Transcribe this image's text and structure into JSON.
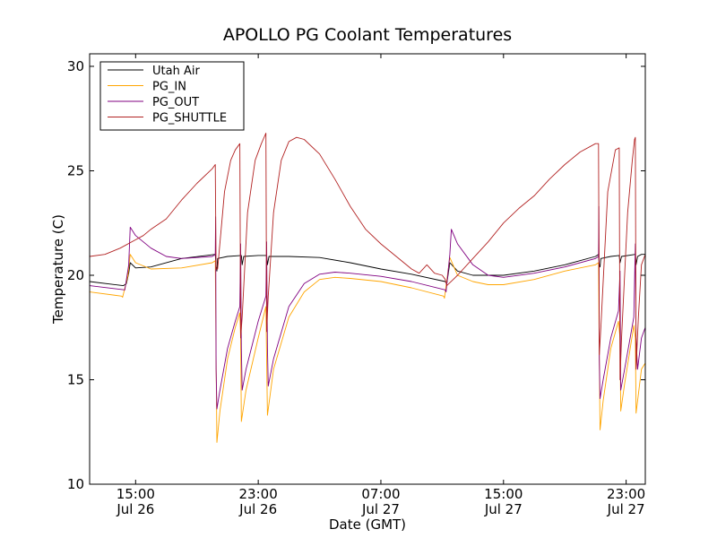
{
  "chart_data": {
    "type": "line",
    "title": "APOLLO PG Coolant Temperatures",
    "xlabel": "Date (GMT)",
    "ylabel": "Temperature (C)",
    "ylim": [
      10,
      30.6
    ],
    "xlim": [
      12.0,
      48.25
    ],
    "x_unit": "hours since Jul 26 00:00 GMT",
    "grid": false,
    "legend_position": "top-left",
    "yticks": [
      {
        "value": 10,
        "label": "10"
      },
      {
        "value": 15,
        "label": "15"
      },
      {
        "value": 20,
        "label": "20"
      },
      {
        "value": 25,
        "label": "25"
      },
      {
        "value": 30,
        "label": "30"
      }
    ],
    "xticks": [
      {
        "value": 15,
        "time": "15:00",
        "date": "Jul 26"
      },
      {
        "value": 23,
        "time": "23:00",
        "date": "Jul 26"
      },
      {
        "value": 31,
        "time": "07:00",
        "date": "Jul 27"
      },
      {
        "value": 39,
        "time": "15:00",
        "date": "Jul 27"
      },
      {
        "value": 47,
        "time": "23:00",
        "date": "Jul 27"
      }
    ],
    "series": [
      {
        "name": "Utah Air",
        "color": "#000000",
        "points": [
          [
            12.0,
            19.7
          ],
          [
            14.2,
            19.5
          ],
          [
            14.4,
            19.6
          ],
          [
            14.55,
            20.1
          ],
          [
            14.65,
            20.6
          ],
          [
            15.0,
            20.35
          ],
          [
            16.0,
            20.4
          ],
          [
            18.0,
            20.8
          ],
          [
            20.2,
            21.0
          ],
          [
            20.25,
            20.4
          ],
          [
            20.3,
            20.2
          ],
          [
            20.35,
            20.8
          ],
          [
            21.0,
            20.9
          ],
          [
            21.9,
            20.95
          ],
          [
            21.95,
            20.5
          ],
          [
            22.05,
            20.9
          ],
          [
            23.0,
            20.95
          ],
          [
            23.55,
            20.95
          ],
          [
            23.6,
            20.5
          ],
          [
            23.7,
            20.9
          ],
          [
            25.0,
            20.9
          ],
          [
            27.0,
            20.85
          ],
          [
            29.0,
            20.6
          ],
          [
            31.0,
            20.3
          ],
          [
            33.0,
            20.05
          ],
          [
            35.2,
            19.7
          ],
          [
            35.3,
            19.6
          ],
          [
            35.5,
            20.6
          ],
          [
            36.0,
            20.2
          ],
          [
            37.0,
            20.0
          ],
          [
            39.0,
            20.0
          ],
          [
            41.0,
            20.2
          ],
          [
            43.0,
            20.5
          ],
          [
            45.0,
            20.9
          ],
          [
            45.2,
            21.0
          ],
          [
            45.25,
            20.5
          ],
          [
            45.3,
            20.4
          ],
          [
            45.35,
            20.8
          ],
          [
            46.0,
            20.9
          ],
          [
            46.55,
            20.95
          ],
          [
            46.6,
            20.6
          ],
          [
            46.7,
            20.9
          ],
          [
            47.6,
            21.0
          ],
          [
            47.65,
            20.5
          ],
          [
            47.75,
            20.9
          ],
          [
            48.0,
            21.0
          ],
          [
            48.25,
            21.0
          ]
        ]
      },
      {
        "name": "PG_IN",
        "color": "#ffa500",
        "points": [
          [
            12.0,
            19.2
          ],
          [
            14.1,
            19.0
          ],
          [
            14.15,
            18.95
          ],
          [
            14.5,
            20.0
          ],
          [
            14.65,
            21.0
          ],
          [
            15.0,
            20.6
          ],
          [
            16.0,
            20.3
          ],
          [
            18.0,
            20.35
          ],
          [
            20.0,
            20.6
          ],
          [
            20.2,
            20.7
          ],
          [
            20.25,
            16.0
          ],
          [
            20.3,
            12.0
          ],
          [
            20.5,
            13.5
          ],
          [
            21.0,
            16.0
          ],
          [
            21.5,
            17.5
          ],
          [
            21.8,
            18.2
          ],
          [
            21.85,
            17.0
          ],
          [
            21.9,
            13.0
          ],
          [
            22.2,
            14.5
          ],
          [
            23.0,
            17.0
          ],
          [
            23.5,
            18.5
          ],
          [
            23.55,
            16.0
          ],
          [
            23.6,
            13.3
          ],
          [
            24.0,
            15.5
          ],
          [
            25.0,
            18.0
          ],
          [
            26.0,
            19.2
          ],
          [
            27.0,
            19.8
          ],
          [
            28.0,
            19.9
          ],
          [
            29.0,
            19.85
          ],
          [
            31.0,
            19.7
          ],
          [
            33.0,
            19.4
          ],
          [
            35.1,
            19.0
          ],
          [
            35.15,
            18.9
          ],
          [
            35.4,
            20.3
          ],
          [
            35.5,
            20.85
          ],
          [
            36.0,
            20.0
          ],
          [
            37.0,
            19.7
          ],
          [
            38.0,
            19.55
          ],
          [
            39.0,
            19.55
          ],
          [
            41.0,
            19.8
          ],
          [
            43.0,
            20.2
          ],
          [
            45.0,
            20.5
          ],
          [
            45.2,
            20.6
          ],
          [
            45.25,
            16.0
          ],
          [
            45.3,
            12.6
          ],
          [
            45.5,
            14.0
          ],
          [
            46.0,
            16.5
          ],
          [
            46.5,
            17.8
          ],
          [
            46.6,
            17.0
          ],
          [
            46.65,
            13.5
          ],
          [
            46.9,
            14.8
          ],
          [
            47.5,
            17.6
          ],
          [
            47.6,
            17.0
          ],
          [
            47.65,
            13.4
          ],
          [
            48.0,
            15.5
          ],
          [
            48.25,
            15.8
          ]
        ]
      },
      {
        "name": "PG_OUT",
        "color": "#800080",
        "points": [
          [
            12.0,
            19.5
          ],
          [
            14.3,
            19.3
          ],
          [
            14.55,
            20.5
          ],
          [
            14.65,
            22.3
          ],
          [
            15.0,
            21.9
          ],
          [
            16.0,
            21.3
          ],
          [
            17.0,
            20.9
          ],
          [
            18.0,
            20.8
          ],
          [
            20.0,
            20.9
          ],
          [
            20.2,
            21.0
          ],
          [
            20.22,
            22.8
          ],
          [
            20.25,
            15.5
          ],
          [
            20.3,
            13.6
          ],
          [
            20.5,
            14.5
          ],
          [
            21.0,
            16.5
          ],
          [
            21.5,
            17.8
          ],
          [
            21.8,
            18.5
          ],
          [
            21.85,
            21.5
          ],
          [
            21.9,
            16.5
          ],
          [
            21.95,
            14.5
          ],
          [
            22.2,
            15.5
          ],
          [
            23.0,
            17.8
          ],
          [
            23.5,
            19.0
          ],
          [
            23.55,
            21.6
          ],
          [
            23.6,
            16.5
          ],
          [
            23.65,
            14.7
          ],
          [
            24.0,
            16.0
          ],
          [
            25.0,
            18.5
          ],
          [
            26.0,
            19.6
          ],
          [
            27.0,
            20.05
          ],
          [
            28.0,
            20.15
          ],
          [
            29.0,
            20.1
          ],
          [
            31.0,
            19.95
          ],
          [
            33.0,
            19.7
          ],
          [
            35.2,
            19.3
          ],
          [
            35.25,
            19.2
          ],
          [
            35.5,
            21.0
          ],
          [
            35.6,
            22.2
          ],
          [
            36.0,
            21.5
          ],
          [
            37.0,
            20.5
          ],
          [
            38.0,
            20.0
          ],
          [
            39.0,
            19.9
          ],
          [
            41.0,
            20.1
          ],
          [
            43.0,
            20.4
          ],
          [
            45.0,
            20.8
          ],
          [
            45.2,
            20.9
          ],
          [
            45.22,
            23.3
          ],
          [
            45.25,
            16.0
          ],
          [
            45.3,
            14.1
          ],
          [
            45.5,
            15.0
          ],
          [
            46.0,
            17.0
          ],
          [
            46.5,
            18.3
          ],
          [
            46.6,
            20.2
          ],
          [
            46.65,
            14.5
          ],
          [
            46.9,
            15.5
          ],
          [
            47.5,
            18.0
          ],
          [
            47.6,
            21.5
          ],
          [
            47.65,
            17.0
          ],
          [
            47.75,
            15.5
          ],
          [
            48.0,
            17.0
          ],
          [
            48.25,
            17.5
          ]
        ]
      },
      {
        "name": "PG_SHUTTLE",
        "color": "#b22222",
        "points": [
          [
            12.0,
            20.9
          ],
          [
            13.0,
            21.0
          ],
          [
            14.0,
            21.3
          ],
          [
            15.0,
            21.7
          ],
          [
            15.5,
            21.9
          ],
          [
            16.0,
            22.2
          ],
          [
            17.0,
            22.7
          ],
          [
            18.0,
            23.6
          ],
          [
            19.0,
            24.4
          ],
          [
            20.0,
            25.1
          ],
          [
            20.2,
            25.3
          ],
          [
            20.25,
            20.3
          ],
          [
            20.35,
            20.3
          ],
          [
            20.8,
            24.0
          ],
          [
            21.2,
            25.5
          ],
          [
            21.5,
            26.0
          ],
          [
            21.8,
            26.3
          ],
          [
            21.85,
            17.0
          ],
          [
            21.95,
            18.0
          ],
          [
            22.3,
            23.0
          ],
          [
            22.8,
            25.5
          ],
          [
            23.2,
            26.3
          ],
          [
            23.5,
            26.8
          ],
          [
            23.55,
            17.3
          ],
          [
            23.65,
            19.0
          ],
          [
            24.0,
            23.0
          ],
          [
            24.5,
            25.5
          ],
          [
            25.0,
            26.4
          ],
          [
            25.5,
            26.6
          ],
          [
            26.0,
            26.5
          ],
          [
            27.0,
            25.8
          ],
          [
            28.0,
            24.6
          ],
          [
            29.0,
            23.3
          ],
          [
            30.0,
            22.2
          ],
          [
            31.0,
            21.5
          ],
          [
            32.0,
            20.9
          ],
          [
            33.0,
            20.3
          ],
          [
            33.5,
            20.1
          ],
          [
            34.0,
            20.5
          ],
          [
            34.5,
            20.1
          ],
          [
            35.0,
            20.0
          ],
          [
            35.2,
            19.8
          ],
          [
            35.3,
            19.5
          ],
          [
            36.0,
            20.0
          ],
          [
            37.0,
            20.8
          ],
          [
            38.0,
            21.6
          ],
          [
            39.0,
            22.5
          ],
          [
            40.0,
            23.2
          ],
          [
            41.0,
            23.8
          ],
          [
            42.0,
            24.6
          ],
          [
            43.0,
            25.3
          ],
          [
            44.0,
            25.9
          ],
          [
            45.0,
            26.3
          ],
          [
            45.2,
            26.3
          ],
          [
            45.25,
            16.2
          ],
          [
            45.35,
            17.5
          ],
          [
            45.8,
            24.0
          ],
          [
            46.3,
            26.0
          ],
          [
            46.55,
            26.1
          ],
          [
            46.6,
            15.0
          ],
          [
            46.7,
            17.0
          ],
          [
            47.1,
            23.0
          ],
          [
            47.4,
            25.5
          ],
          [
            47.55,
            26.5
          ],
          [
            47.6,
            26.6
          ],
          [
            47.65,
            15.5
          ],
          [
            47.8,
            18.0
          ],
          [
            48.0,
            20.5
          ],
          [
            48.25,
            21.0
          ]
        ]
      }
    ]
  }
}
